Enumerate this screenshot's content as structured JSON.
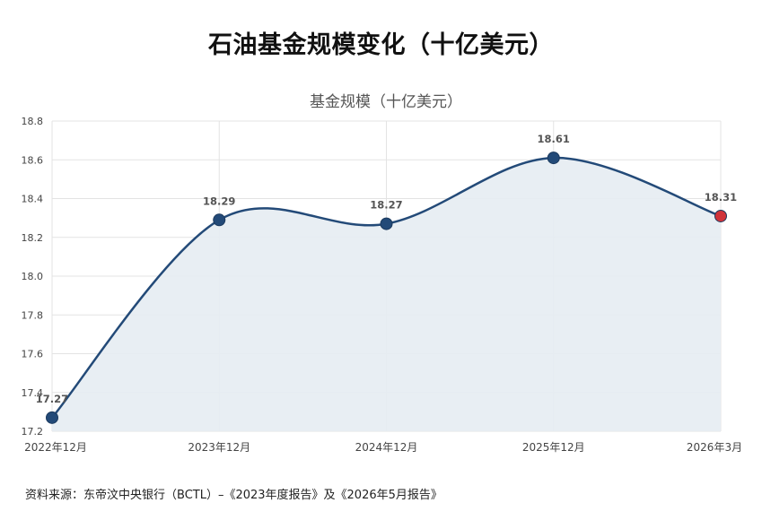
{
  "page": {
    "title": "石油基金规模变化（十亿美元）",
    "source": "资料来源：东帝汶中央银行（BCTL）–《2023年度报告》及《2026年5月报告》"
  },
  "chart_data": {
    "type": "area",
    "title": "基金规模（十亿美元）",
    "xlabel": "",
    "ylabel": "",
    "categories": [
      "2022年12月",
      "2023年12月",
      "2024年12月",
      "2025年12月",
      "2026年3月"
    ],
    "series": [
      {
        "values": [
          17.27,
          18.29,
          18.27,
          18.61,
          18.31
        ],
        "data_labels": [
          "17.27",
          "18.29",
          "18.27",
          "18.61",
          "18.31"
        ],
        "line_color": "#234a78",
        "fill_color": "#e6ecf2",
        "point_colors": [
          "#234a78",
          "#234a78",
          "#234a78",
          "#234a78",
          "#d0333a"
        ]
      }
    ],
    "ylim": [
      17.2,
      18.8
    ],
    "yticks": [
      "17.2",
      "17.4",
      "17.6",
      "17.8",
      "18.0",
      "18.2",
      "18.4",
      "18.6",
      "18.8"
    ],
    "grid": true,
    "legend": "none"
  }
}
